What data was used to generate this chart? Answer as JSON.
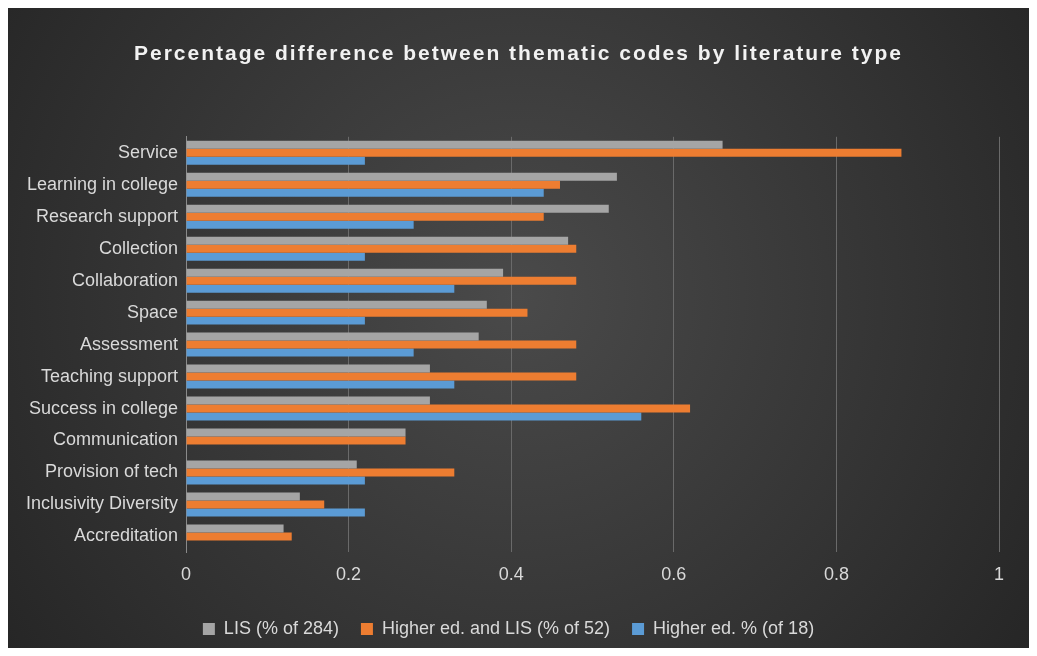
{
  "chart_data": {
    "type": "bar",
    "orientation": "horizontal",
    "title": "Percentage difference between thematic codes by literature type",
    "categories": [
      "Service",
      "Learning in college",
      "Research support",
      "Collection",
      "Collaboration",
      "Space",
      "Assessment",
      "Teaching support",
      "Success in college",
      "Communication",
      "Provision of tech",
      "Inclusivity Diversity",
      "Accreditation"
    ],
    "series": [
      {
        "name": "LIS (% of 284)",
        "color": "#a5a5a5",
        "values": [
          0.66,
          0.53,
          0.52,
          0.47,
          0.39,
          0.37,
          0.36,
          0.3,
          0.3,
          0.27,
          0.21,
          0.14,
          0.12
        ]
      },
      {
        "name": "Higher ed. and LIS (% of 52)",
        "color": "#ed7d31",
        "values": [
          0.88,
          0.46,
          0.44,
          0.48,
          0.48,
          0.42,
          0.48,
          0.48,
          0.62,
          0.27,
          0.33,
          0.17,
          0.13
        ]
      },
      {
        "name": "Higher ed. % (of 18)",
        "color": "#5b9bd5",
        "values": [
          0.22,
          0.44,
          0.28,
          0.22,
          0.33,
          0.22,
          0.28,
          0.33,
          0.56,
          0,
          0.22,
          0.22,
          0
        ]
      }
    ],
    "xlim": [
      0,
      1
    ],
    "xticks": [
      0,
      0.2,
      0.4,
      0.6,
      0.8,
      1
    ],
    "grid": "x",
    "legend": "bottom"
  }
}
